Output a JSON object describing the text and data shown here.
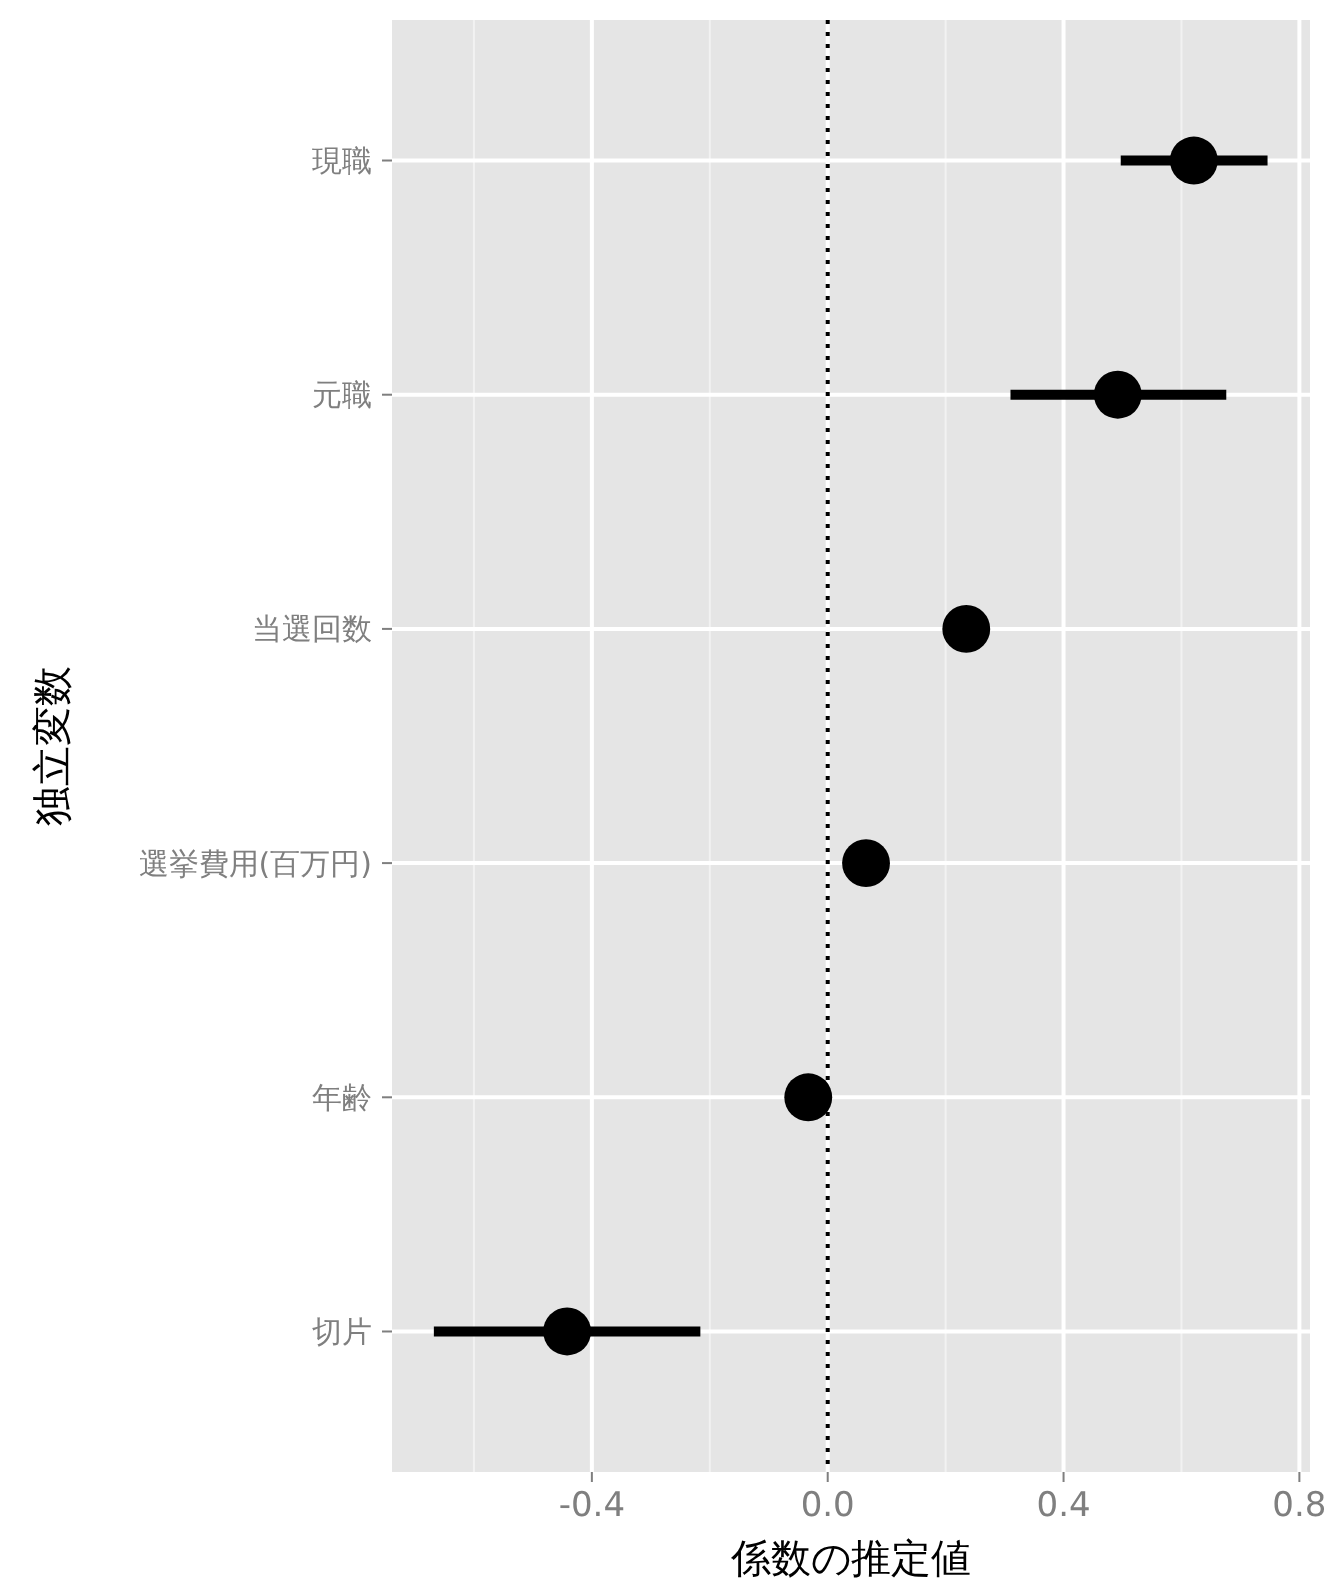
{
  "chart_data": {
    "type": "scatter",
    "orientation": "horizontal",
    "xlabel": "係数の推定値",
    "ylabel": "独立変数",
    "categories": [
      "現職",
      "元職",
      "当選回数",
      "選挙費用(百万円)",
      "年齢",
      "切片"
    ],
    "values": [
      0.621,
      0.492,
      0.235,
      0.065,
      -0.033,
      -0.442
    ],
    "errors": [
      [
        0.497,
        0.746
      ],
      [
        0.31,
        0.676
      ],
      null,
      null,
      null,
      [
        -0.668,
        -0.216
      ]
    ],
    "color": "#000000",
    "marker": "circle",
    "xlim": [
      -0.739,
      0.818
    ],
    "xticks": [
      {
        "value": -0.4,
        "label": "-0.4"
      },
      {
        "value": 0,
        "label": "0.0"
      },
      {
        "value": 0.4,
        "label": "0.4"
      },
      {
        "value": 0.8,
        "label": "0.8"
      }
    ],
    "ref_lines": [
      {
        "axis": "x",
        "value": 0,
        "line_style": "dotted",
        "color": "#000000"
      }
    ],
    "grid": true
  }
}
